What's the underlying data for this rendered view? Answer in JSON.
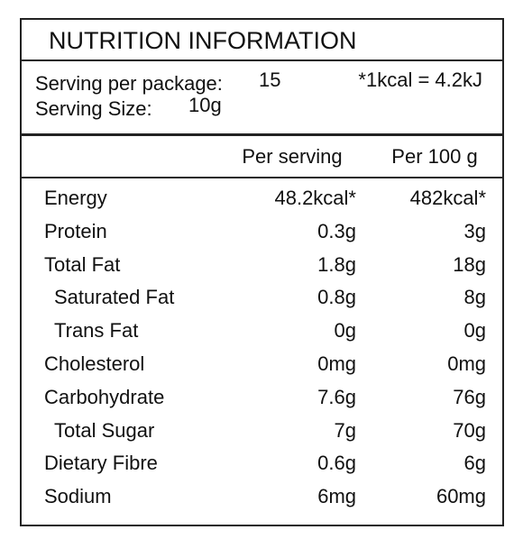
{
  "title": "NUTRITION INFORMATION",
  "serving": {
    "package_label": "Serving per package:",
    "package_value": "15",
    "conversion": "*1kcal = 4.2kJ",
    "size_label": "Serving Size:",
    "size_value": "10g"
  },
  "table": {
    "columns": [
      "Per serving",
      "Per 100 g"
    ],
    "rows": [
      {
        "name": "Energy",
        "per_serving": "48.2kcal*",
        "per_100g": "482kcal*",
        "indent": false
      },
      {
        "name": "Protein",
        "per_serving": "0.3g",
        "per_100g": "3g",
        "indent": false
      },
      {
        "name": "Total Fat",
        "per_serving": "1.8g",
        "per_100g": "18g",
        "indent": false
      },
      {
        "name": "Saturated Fat",
        "per_serving": "0.8g",
        "per_100g": "8g",
        "indent": true
      },
      {
        "name": "Trans Fat",
        "per_serving": "0g",
        "per_100g": "0g",
        "indent": true
      },
      {
        "name": "Cholesterol",
        "per_serving": "0mg",
        "per_100g": "0mg",
        "indent": false
      },
      {
        "name": "Carbohydrate",
        "per_serving": "7.6g",
        "per_100g": "76g",
        "indent": false
      },
      {
        "name": "Total Sugar",
        "per_serving": "7g",
        "per_100g": "70g",
        "indent": true
      },
      {
        "name": "Dietary Fibre",
        "per_serving": "0.6g",
        "per_100g": "6g",
        "indent": false
      },
      {
        "name": "Sodium",
        "per_serving": "6mg",
        "per_100g": "60mg",
        "indent": false
      }
    ]
  }
}
